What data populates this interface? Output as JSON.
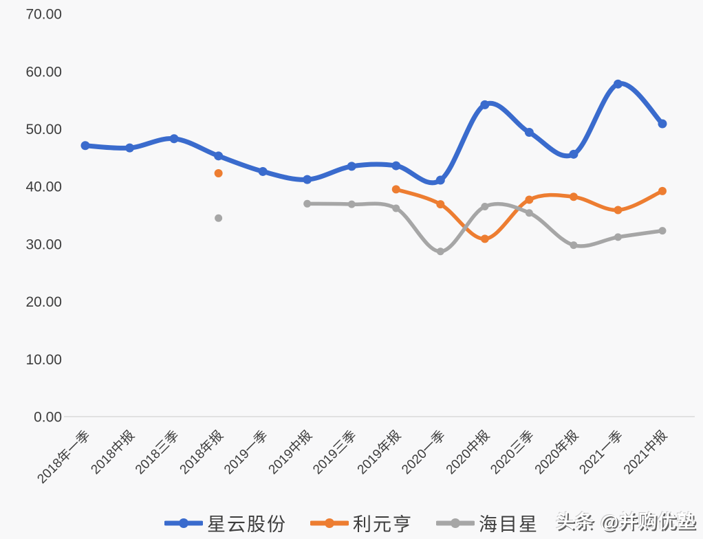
{
  "chart_data": {
    "type": "line",
    "title": "",
    "xlabel": "",
    "ylabel": "",
    "categories": [
      "2018年一季",
      "2018中报",
      "2018三季",
      "2018年报",
      "2019一季",
      "2019中报",
      "2019三季",
      "2019年报",
      "2020一季",
      "2020中报",
      "2020三季",
      "2020年报",
      "2021一季",
      "2021中报"
    ],
    "series": [
      {
        "name": "星云股份",
        "color": "#3a6bcd",
        "values": [
          47.1,
          46.7,
          48.3,
          45.3,
          42.6,
          41.2,
          43.5,
          43.6,
          41.1,
          54.2,
          49.4,
          45.6,
          57.8,
          50.9
        ]
      },
      {
        "name": "利元亨",
        "color": "#ed7d31",
        "values": [
          null,
          null,
          null,
          42.3,
          null,
          null,
          null,
          39.5,
          36.9,
          30.9,
          37.7,
          38.2,
          35.9,
          39.2
        ]
      },
      {
        "name": "海目星",
        "color": "#a6a6a6",
        "values": [
          null,
          null,
          null,
          34.5,
          null,
          37.0,
          36.9,
          36.2,
          28.7,
          36.5,
          35.4,
          29.8,
          31.2,
          32.3
        ]
      }
    ],
    "ylim": [
      0,
      70
    ],
    "ytick_step": 10,
    "ytick_labels": [
      "0.00",
      "10.00",
      "20.00",
      "30.00",
      "40.00",
      "50.00",
      "60.00",
      "70.00"
    ],
    "grid": false,
    "smooth": true,
    "legend_position": "bottom",
    "x_label_rotation_deg": 45
  },
  "colors": {
    "background": "#f8f8f9",
    "axis_line": "#d9d9d9",
    "axis_text": "#3d3d3d",
    "series_blue": "#3a6bcd",
    "series_orange": "#ed7d31",
    "series_gray": "#a6a6a6"
  },
  "watermark": {
    "text": "头条 @并购优塾"
  }
}
